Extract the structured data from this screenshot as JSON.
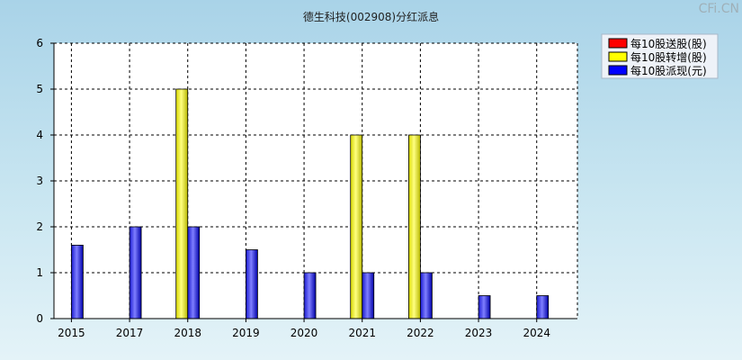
{
  "chart_data": {
    "type": "bar",
    "title": "德生科技(002908)分红派息",
    "watermark": "CFi.CN",
    "categories": [
      "2015",
      "2017",
      "2018",
      "2019",
      "2020",
      "2021",
      "2022",
      "2023",
      "2024"
    ],
    "series": [
      {
        "name": "每10股送股(股)",
        "color": "#ff0000",
        "values": [
          0,
          0,
          0,
          0,
          0,
          0,
          0,
          0,
          0
        ]
      },
      {
        "name": "每10股转增(股)",
        "color": "#ffff00",
        "values": [
          0,
          0,
          5,
          0,
          0,
          4,
          4,
          0,
          0
        ]
      },
      {
        "name": "每10股派现(元)",
        "color": "#0000ff",
        "values": [
          1.6,
          2,
          2,
          1.5,
          1,
          1,
          1,
          0.5,
          0.5
        ]
      }
    ],
    "ylim": [
      0,
      6
    ],
    "yticks": [
      0,
      1,
      2,
      3,
      4,
      5,
      6
    ],
    "grid": true,
    "legend": "top-right"
  }
}
